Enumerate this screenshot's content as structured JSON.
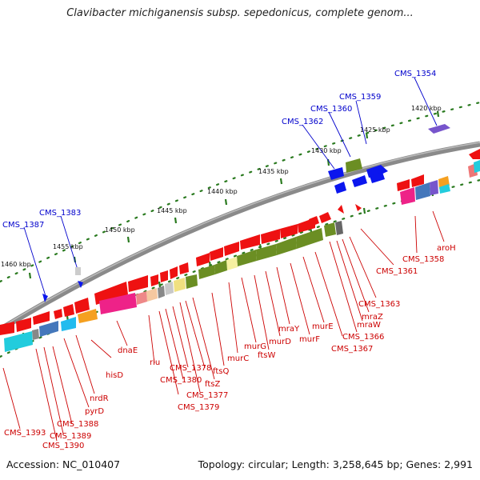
{
  "header": {
    "title": "Clavibacter michiganensis subsp. sepedonicus, complete genom..."
  },
  "footer": {
    "accession": "Accession: NC_010407",
    "summary": "Topology: circular; Length: 3,258,645 bp; Genes: 2,991"
  },
  "colors": {
    "backbone": "#888888",
    "ruler": "#2a7a1f",
    "label_red": "#cc0000",
    "label_blue": "#0000cc",
    "gene_red": "#ee1111",
    "gene_olive": "#6b8e23",
    "gene_blue": "#0b16ee"
  },
  "ruler": {
    "ticks": [
      "1420 kbp",
      "1425 kbp",
      "1430 kbp",
      "1435 kbp",
      "1440 kbp",
      "1445 kbp",
      "1450 kbp",
      "1455 kbp",
      "1460 kbp"
    ]
  },
  "labels_blue": [
    "CMS_1354",
    "CMS_1359",
    "CMS_1360",
    "CMS_1362",
    "CMS_1383",
    "CMS_1387"
  ],
  "labels_red": [
    "aroH",
    "CMS_1358",
    "CMS_1361",
    "CMS_1363",
    "mraZ",
    "mraW",
    "CMS_1366",
    "CMS_1367",
    "murE",
    "murF",
    "mraY",
    "murD",
    "ftsW",
    "murG",
    "murC",
    "ftsQ",
    "ftsZ",
    "CMS_1378",
    "CMS_1380",
    "CMS_1377",
    "CMS_1379",
    "rlu",
    "dnaE",
    "hisD",
    "nrdR",
    "pyrD",
    "CMS_1388",
    "CMS_1389",
    "CMS_1390",
    "CMS_1393"
  ]
}
